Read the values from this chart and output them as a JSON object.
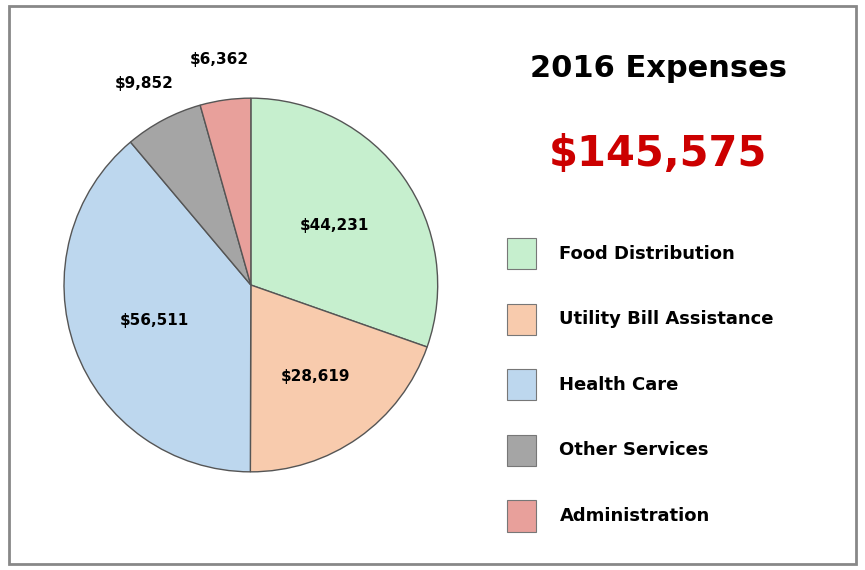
{
  "title_line1": "2016 Expenses",
  "title_line2": "$145,575",
  "title_line2_color": "#cc0000",
  "title_color": "#000000",
  "slices": [
    {
      "label": "Food Distribution",
      "value": 44231,
      "color": "#c6efce",
      "r_label": 0.55
    },
    {
      "label": "Utility Bill Assistance",
      "value": 28619,
      "color": "#f8cbad",
      "r_label": 0.6
    },
    {
      "label": "Health Care",
      "value": 56511,
      "color": "#bdd7ee",
      "r_label": 0.55
    },
    {
      "label": "Other Services",
      "value": 9852,
      "color": "#a5a5a5",
      "r_label": 1.22
    },
    {
      "label": "Administration",
      "value": 6362,
      "color": "#e8a09b",
      "r_label": 1.22
    }
  ],
  "background_color": "#ffffff",
  "border_color": "#888888",
  "label_fontsize": 11,
  "legend_fontsize": 13,
  "title_fontsize1": 22,
  "title_fontsize2": 30,
  "startangle": 90
}
